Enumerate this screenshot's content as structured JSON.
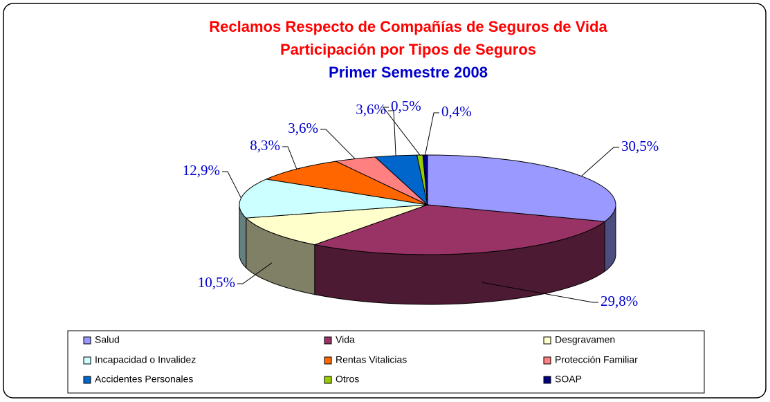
{
  "chart_data": {
    "type": "pie3d",
    "title": [
      "Reclamos Respecto de Compañías de Seguros de Vida",
      "Participación por Tipos de Seguros"
    ],
    "subtitle": "Primer Semestre 2008",
    "categories": [
      "Salud",
      "Vida",
      "Desgravamen",
      "Incapacidad o Invalidez",
      "Rentas Vitalicias",
      "Protección Familiar",
      "Accidentes Personales",
      "Otros",
      "SOAP"
    ],
    "values": [
      30.5,
      29.8,
      10.5,
      12.9,
      8.3,
      3.6,
      3.6,
      0.5,
      0.4
    ],
    "value_labels": [
      "30,5%",
      "29,8%",
      "10,5%",
      "12,9%",
      "8,3%",
      "3,6%",
      "3,6%",
      "0,5%",
      "0,4%"
    ],
    "colors": [
      "#9999ff",
      "#993366",
      "#ffffcc",
      "#ccffff",
      "#ff6600",
      "#ff8080",
      "#0066cc",
      "#99cc00",
      "#000080"
    ],
    "legend": "bottom"
  }
}
